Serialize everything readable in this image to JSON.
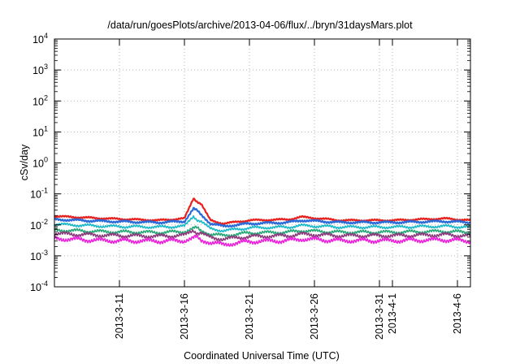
{
  "chart_data": {
    "type": "line",
    "title": "/data/run/goesPlots/archive/2013-04-06/flux/../bryn/31daysMars.plot",
    "xlabel": "Coordinated Universal Time (UTC)",
    "ylabel": "cSv/day",
    "y_scale": "log",
    "ylim": [
      0.0001,
      10000
    ],
    "y_ticks": [
      {
        "value": 0.0001,
        "base": "10",
        "exp": "-4"
      },
      {
        "value": 0.001,
        "base": "10",
        "exp": "-3"
      },
      {
        "value": 0.01,
        "base": "10",
        "exp": "-2"
      },
      {
        "value": 0.1,
        "base": "10",
        "exp": "-1"
      },
      {
        "value": 1,
        "base": "10",
        "exp": "0"
      },
      {
        "value": 10,
        "base": "10",
        "exp": "1"
      },
      {
        "value": 100,
        "base": "10",
        "exp": "2"
      },
      {
        "value": 1000,
        "base": "10",
        "exp": "3"
      },
      {
        "value": 10000,
        "base": "10",
        "exp": "4"
      }
    ],
    "xlim": [
      "2013-03-06",
      "2013-04-07"
    ],
    "x_ticks": [
      "2013-3-11",
      "2013-3-16",
      "2013-3-21",
      "2013-3-26",
      "2013-3-31",
      "2013-4-1",
      "2013-4-6"
    ],
    "grid": true,
    "series": [
      {
        "color": "#e8211e",
        "x": [
          "2013-03-06",
          "2013-03-10",
          "2013-03-14",
          "2013-03-16",
          "2013-03-16.7",
          "2013-03-17.3",
          "2013-03-18",
          "2013-03-19",
          "2013-03-21",
          "2013-03-24",
          "2013-03-25",
          "2013-03-28",
          "2013-04-01",
          "2013-04-05",
          "2013-04-07"
        ],
        "y": [
          0.019,
          0.016,
          0.014,
          0.016,
          0.07,
          0.045,
          0.014,
          0.011,
          0.014,
          0.015,
          0.018,
          0.014,
          0.014,
          0.016,
          0.014
        ]
      },
      {
        "color": "#2a6ad9",
        "x": [
          "2013-03-06",
          "2013-03-10",
          "2013-03-14",
          "2013-03-16",
          "2013-03-16.7",
          "2013-03-17.3",
          "2013-03-18",
          "2013-03-19",
          "2013-03-21",
          "2013-03-24",
          "2013-03-25",
          "2013-03-28",
          "2013-04-01",
          "2013-04-05",
          "2013-04-07"
        ],
        "y": [
          0.015,
          0.013,
          0.012,
          0.013,
          0.035,
          0.022,
          0.011,
          0.009,
          0.011,
          0.012,
          0.014,
          0.012,
          0.012,
          0.013,
          0.012
        ]
      },
      {
        "color": "#19b9c9",
        "x": [
          "2013-03-06",
          "2013-03-10",
          "2013-03-14",
          "2013-03-16",
          "2013-03-16.7",
          "2013-03-17.3",
          "2013-03-18",
          "2013-03-19",
          "2013-03-21",
          "2013-03-24",
          "2013-03-25",
          "2013-03-28",
          "2013-04-01",
          "2013-04-05",
          "2013-04-07"
        ],
        "y": [
          0.0105,
          0.009,
          0.0085,
          0.009,
          0.018,
          0.012,
          0.0075,
          0.0065,
          0.008,
          0.0085,
          0.0095,
          0.0085,
          0.0085,
          0.009,
          0.0085
        ]
      },
      {
        "color": "#28a878",
        "x": [
          "2013-03-06",
          "2013-03-10",
          "2013-03-14",
          "2013-03-16",
          "2013-03-16.7",
          "2013-03-17.3",
          "2013-03-18",
          "2013-03-19",
          "2013-03-21",
          "2013-03-24",
          "2013-03-25",
          "2013-03-28",
          "2013-04-01",
          "2013-04-05",
          "2013-04-07"
        ],
        "y": [
          0.0068,
          0.006,
          0.0057,
          0.006,
          0.0085,
          0.0068,
          0.005,
          0.0045,
          0.0055,
          0.0058,
          0.0065,
          0.0058,
          0.0058,
          0.0062,
          0.0057
        ]
      },
      {
        "color": "#8c3c7c",
        "x": [
          "2013-03-06",
          "2013-03-10",
          "2013-03-14",
          "2013-03-16",
          "2013-03-16.7",
          "2013-03-17.3",
          "2013-03-18",
          "2013-03-19",
          "2013-03-21",
          "2013-03-24",
          "2013-03-25",
          "2013-03-28",
          "2013-04-01",
          "2013-04-05",
          "2013-04-07"
        ],
        "y": [
          0.0052,
          0.0046,
          0.0043,
          0.0046,
          0.0062,
          0.005,
          0.0039,
          0.0035,
          0.0042,
          0.0045,
          0.005,
          0.0045,
          0.0045,
          0.0048,
          0.0044
        ]
      },
      {
        "color": "#ee22dd",
        "x": [
          "2013-03-06",
          "2013-03-10",
          "2013-03-14",
          "2013-03-16",
          "2013-03-16.7",
          "2013-03-17.3",
          "2013-03-18",
          "2013-03-19",
          "2013-03-21",
          "2013-03-24",
          "2013-03-25",
          "2013-03-28",
          "2013-04-01",
          "2013-04-05",
          "2013-04-07"
        ],
        "y": [
          0.0036,
          0.0031,
          0.003,
          0.0031,
          0.0042,
          0.0034,
          0.0027,
          0.0023,
          0.0029,
          0.0031,
          0.0035,
          0.0031,
          0.0031,
          0.0033,
          0.003
        ]
      }
    ]
  }
}
